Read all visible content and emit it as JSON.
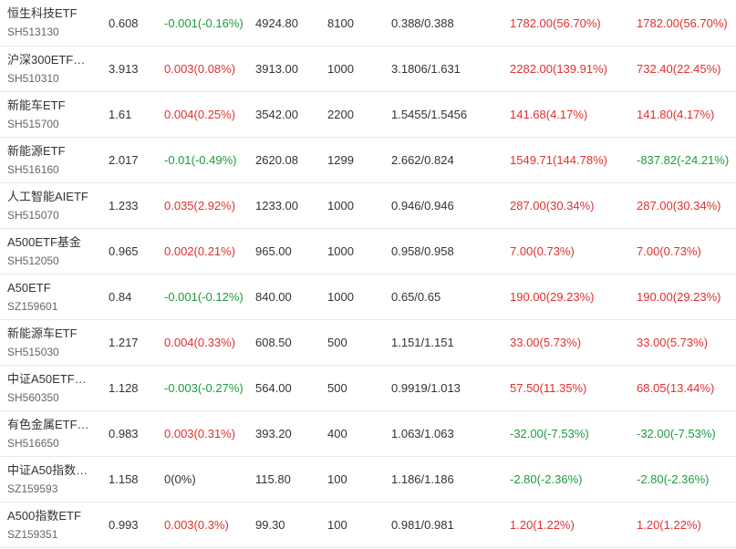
{
  "colors": {
    "up": "#e0302d",
    "down": "#1a9c3e",
    "flat": "#333333"
  },
  "rows": [
    {
      "name": "恒生科技ETF",
      "code": "SH513130",
      "price": "0.608",
      "change": "-0.001(-0.16%)",
      "change_dir": "down",
      "value": "4924.80",
      "qty": "8100",
      "cost": "0.388/0.388",
      "pl": "1782.00(56.70%)",
      "pl_dir": "up",
      "daypl": "1782.00(56.70%)",
      "daypl_dir": "up"
    },
    {
      "name": "沪深300ETF…",
      "code": "SH510310",
      "price": "3.913",
      "change": "0.003(0.08%)",
      "change_dir": "up",
      "value": "3913.00",
      "qty": "1000",
      "cost": "3.1806/1.631",
      "pl": "2282.00(139.91%)",
      "pl_dir": "up",
      "daypl": "732.40(22.45%)",
      "daypl_dir": "up"
    },
    {
      "name": "新能车ETF",
      "code": "SH515700",
      "price": "1.61",
      "change": "0.004(0.25%)",
      "change_dir": "up",
      "value": "3542.00",
      "qty": "2200",
      "cost": "1.5455/1.5456",
      "pl": "141.68(4.17%)",
      "pl_dir": "up",
      "daypl": "141.80(4.17%)",
      "daypl_dir": "up"
    },
    {
      "name": "新能源ETF",
      "code": "SH516160",
      "price": "2.017",
      "change": "-0.01(-0.49%)",
      "change_dir": "down",
      "value": "2620.08",
      "qty": "1299",
      "cost": "2.662/0.824",
      "pl": "1549.71(144.78%)",
      "pl_dir": "up",
      "daypl": "-837.82(-24.21%)",
      "daypl_dir": "down"
    },
    {
      "name": "人工智能AIETF",
      "code": "SH515070",
      "price": "1.233",
      "change": "0.035(2.92%)",
      "change_dir": "up",
      "value": "1233.00",
      "qty": "1000",
      "cost": "0.946/0.946",
      "pl": "287.00(30.34%)",
      "pl_dir": "up",
      "daypl": "287.00(30.34%)",
      "daypl_dir": "up"
    },
    {
      "name": "A500ETF基金",
      "code": "SH512050",
      "price": "0.965",
      "change": "0.002(0.21%)",
      "change_dir": "up",
      "value": "965.00",
      "qty": "1000",
      "cost": "0.958/0.958",
      "pl": "7.00(0.73%)",
      "pl_dir": "up",
      "daypl": "7.00(0.73%)",
      "daypl_dir": "up"
    },
    {
      "name": "A50ETF",
      "code": "SZ159601",
      "price": "0.84",
      "change": "-0.001(-0.12%)",
      "change_dir": "down",
      "value": "840.00",
      "qty": "1000",
      "cost": "0.65/0.65",
      "pl": "190.00(29.23%)",
      "pl_dir": "up",
      "daypl": "190.00(29.23%)",
      "daypl_dir": "up"
    },
    {
      "name": "新能源车ETF",
      "code": "SH515030",
      "price": "1.217",
      "change": "0.004(0.33%)",
      "change_dir": "up",
      "value": "608.50",
      "qty": "500",
      "cost": "1.151/1.151",
      "pl": "33.00(5.73%)",
      "pl_dir": "up",
      "daypl": "33.00(5.73%)",
      "daypl_dir": "up"
    },
    {
      "name": "中证A50ETF…",
      "code": "SH560350",
      "price": "1.128",
      "change": "-0.003(-0.27%)",
      "change_dir": "down",
      "value": "564.00",
      "qty": "500",
      "cost": "0.9919/1.013",
      "pl": "57.50(11.35%)",
      "pl_dir": "up",
      "daypl": "68.05(13.44%)",
      "daypl_dir": "up"
    },
    {
      "name": "有色金属ETF…",
      "code": "SH516650",
      "price": "0.983",
      "change": "0.003(0.31%)",
      "change_dir": "up",
      "value": "393.20",
      "qty": "400",
      "cost": "1.063/1.063",
      "pl": "-32.00(-7.53%)",
      "pl_dir": "down",
      "daypl": "-32.00(-7.53%)",
      "daypl_dir": "down"
    },
    {
      "name": "中证A50指数…",
      "code": "SZ159593",
      "price": "1.158",
      "change": "0(0%)",
      "change_dir": "flat",
      "value": "115.80",
      "qty": "100",
      "cost": "1.186/1.186",
      "pl": "-2.80(-2.36%)",
      "pl_dir": "down",
      "daypl": "-2.80(-2.36%)",
      "daypl_dir": "down"
    },
    {
      "name": "A500指数ETF",
      "code": "SZ159351",
      "price": "0.993",
      "change": "0.003(0.3%)",
      "change_dir": "up",
      "value": "99.30",
      "qty": "100",
      "cost": "0.981/0.981",
      "pl": "1.20(1.22%)",
      "pl_dir": "up",
      "daypl": "1.20(1.22%)",
      "daypl_dir": "up"
    }
  ]
}
